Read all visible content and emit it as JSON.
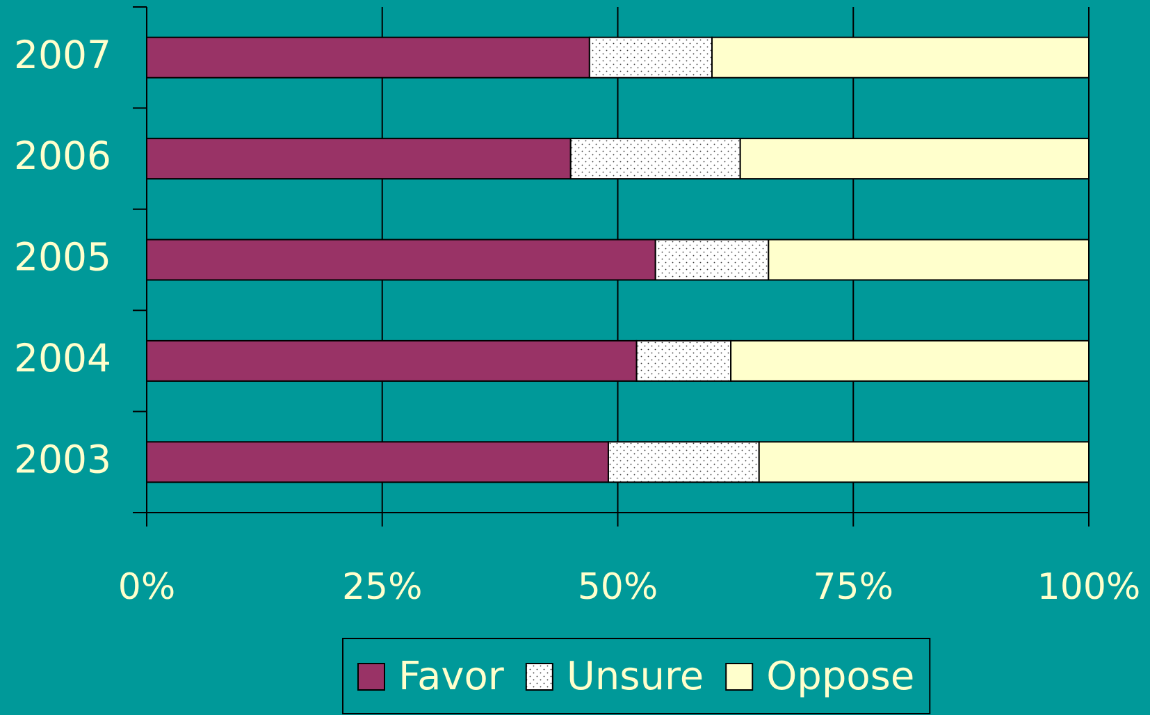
{
  "chart_data": {
    "type": "stacked_barh",
    "categories": [
      "2003",
      "2004",
      "2005",
      "2006",
      "2007"
    ],
    "series": [
      {
        "name": "Favor",
        "color": "#993366",
        "values": [
          49,
          52,
          54,
          45,
          47
        ]
      },
      {
        "name": "Unsure",
        "color": "#ffffff",
        "pattern": "dotted",
        "values": [
          16,
          10,
          12,
          18,
          13
        ]
      },
      {
        "name": "Oppose",
        "color": "#ffffcc",
        "values": [
          35,
          38,
          34,
          37,
          40
        ]
      }
    ],
    "xlim": [
      0,
      100
    ],
    "xticks": [
      {
        "value": 0,
        "label": "0%"
      },
      {
        "value": 25,
        "label": "25%"
      },
      {
        "value": 50,
        "label": "50%"
      },
      {
        "value": 75,
        "label": "75%"
      },
      {
        "value": 100,
        "label": "100%"
      }
    ],
    "grid": true,
    "legend": "bottom"
  }
}
